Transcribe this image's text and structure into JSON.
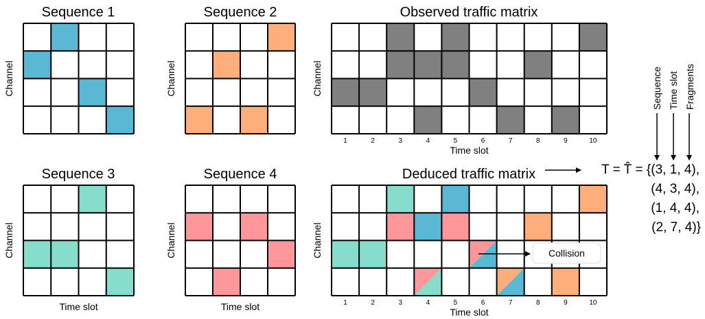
{
  "colors": {
    "blue": "#5BB8D4",
    "orange": "#FDAE7B",
    "green": "#86DDCB",
    "pink": "#FE9799",
    "gray": "#808080",
    "grid": "#000000"
  },
  "panels": [
    {
      "id": "seq1",
      "title": "Sequence 1",
      "ylabel": "Channel",
      "xlabel": "",
      "ticks": [],
      "cols": 4,
      "rows": 4,
      "cells": [
        {
          "c": 1,
          "r": 0,
          "fill": "blue"
        },
        {
          "c": 0,
          "r": 1,
          "fill": "blue"
        },
        {
          "c": 2,
          "r": 2,
          "fill": "blue"
        },
        {
          "c": 3,
          "r": 3,
          "fill": "blue"
        }
      ]
    },
    {
      "id": "seq2",
      "title": "Sequence 2",
      "ylabel": "Channel",
      "xlabel": "",
      "ticks": [],
      "cols": 4,
      "rows": 4,
      "cells": [
        {
          "c": 3,
          "r": 0,
          "fill": "orange"
        },
        {
          "c": 1,
          "r": 1,
          "fill": "orange"
        },
        {
          "c": 0,
          "r": 3,
          "fill": "orange"
        },
        {
          "c": 2,
          "r": 3,
          "fill": "orange"
        }
      ]
    },
    {
      "id": "observed",
      "title": "Observed traffic matrix",
      "ylabel": "Channel",
      "xlabel": "Time slot",
      "ticks": [
        "1",
        "2",
        "3",
        "4",
        "5",
        "6",
        "7",
        "8",
        "9",
        "10"
      ],
      "cols": 10,
      "rows": 4,
      "cells": [
        {
          "c": 2,
          "r": 0,
          "fill": "gray"
        },
        {
          "c": 4,
          "r": 0,
          "fill": "gray"
        },
        {
          "c": 9,
          "r": 0,
          "fill": "gray"
        },
        {
          "c": 2,
          "r": 1,
          "fill": "gray"
        },
        {
          "c": 3,
          "r": 1,
          "fill": "gray"
        },
        {
          "c": 4,
          "r": 1,
          "fill": "gray"
        },
        {
          "c": 7,
          "r": 1,
          "fill": "gray"
        },
        {
          "c": 0,
          "r": 2,
          "fill": "gray"
        },
        {
          "c": 1,
          "r": 2,
          "fill": "gray"
        },
        {
          "c": 5,
          "r": 2,
          "fill": "gray"
        },
        {
          "c": 3,
          "r": 3,
          "fill": "gray"
        },
        {
          "c": 6,
          "r": 3,
          "fill": "gray"
        },
        {
          "c": 8,
          "r": 3,
          "fill": "gray"
        }
      ]
    },
    {
      "id": "seq3",
      "title": "Sequence 3",
      "ylabel": "Channel",
      "xlabel": "Time slot",
      "ticks": [],
      "cols": 4,
      "rows": 4,
      "cells": [
        {
          "c": 2,
          "r": 0,
          "fill": "green"
        },
        {
          "c": 0,
          "r": 2,
          "fill": "green"
        },
        {
          "c": 1,
          "r": 2,
          "fill": "green"
        },
        {
          "c": 3,
          "r": 3,
          "fill": "green"
        }
      ]
    },
    {
      "id": "seq4",
      "title": "Sequence 4",
      "ylabel": "Channel",
      "xlabel": "Time slot",
      "ticks": [],
      "cols": 4,
      "rows": 4,
      "cells": [
        {
          "c": 0,
          "r": 1,
          "fill": "pink"
        },
        {
          "c": 2,
          "r": 1,
          "fill": "pink"
        },
        {
          "c": 3,
          "r": 2,
          "fill": "pink"
        },
        {
          "c": 1,
          "r": 3,
          "fill": "pink"
        }
      ]
    },
    {
      "id": "deduced",
      "title": "Deduced traffic matrix",
      "ylabel": "Channel",
      "xlabel": "Time slot",
      "ticks": [
        "1",
        "2",
        "3",
        "4",
        "5",
        "6",
        "7",
        "8",
        "9",
        "10"
      ],
      "cols": 10,
      "rows": 4,
      "cells": [
        {
          "c": 2,
          "r": 0,
          "fill": "green"
        },
        {
          "c": 4,
          "r": 0,
          "fill": "blue"
        },
        {
          "c": 9,
          "r": 0,
          "fill": "orange"
        },
        {
          "c": 2,
          "r": 1,
          "fill": "pink"
        },
        {
          "c": 3,
          "r": 1,
          "fill": "blue"
        },
        {
          "c": 4,
          "r": 1,
          "fill": "pink"
        },
        {
          "c": 7,
          "r": 1,
          "fill": "orange"
        },
        {
          "c": 0,
          "r": 2,
          "fill": "green"
        },
        {
          "c": 1,
          "r": 2,
          "fill": "green"
        },
        {
          "c": 5,
          "r": 2,
          "split": [
            "pink",
            "blue"
          ]
        },
        {
          "c": 3,
          "r": 3,
          "split": [
            "pink",
            "green"
          ]
        },
        {
          "c": 6,
          "r": 3,
          "split": [
            "orange",
            "blue"
          ]
        },
        {
          "c": 8,
          "r": 3,
          "fill": "orange"
        }
      ]
    }
  ],
  "collision_label": "Collision",
  "side_labels": [
    "Sequence",
    "Time slot",
    "Fragments"
  ],
  "equation": {
    "lines": [
      "T = T̂ = {(3, 1, 4),",
      "(4, 3, 4),",
      "(1, 4, 4),",
      "(2, 7, 4)}"
    ]
  }
}
